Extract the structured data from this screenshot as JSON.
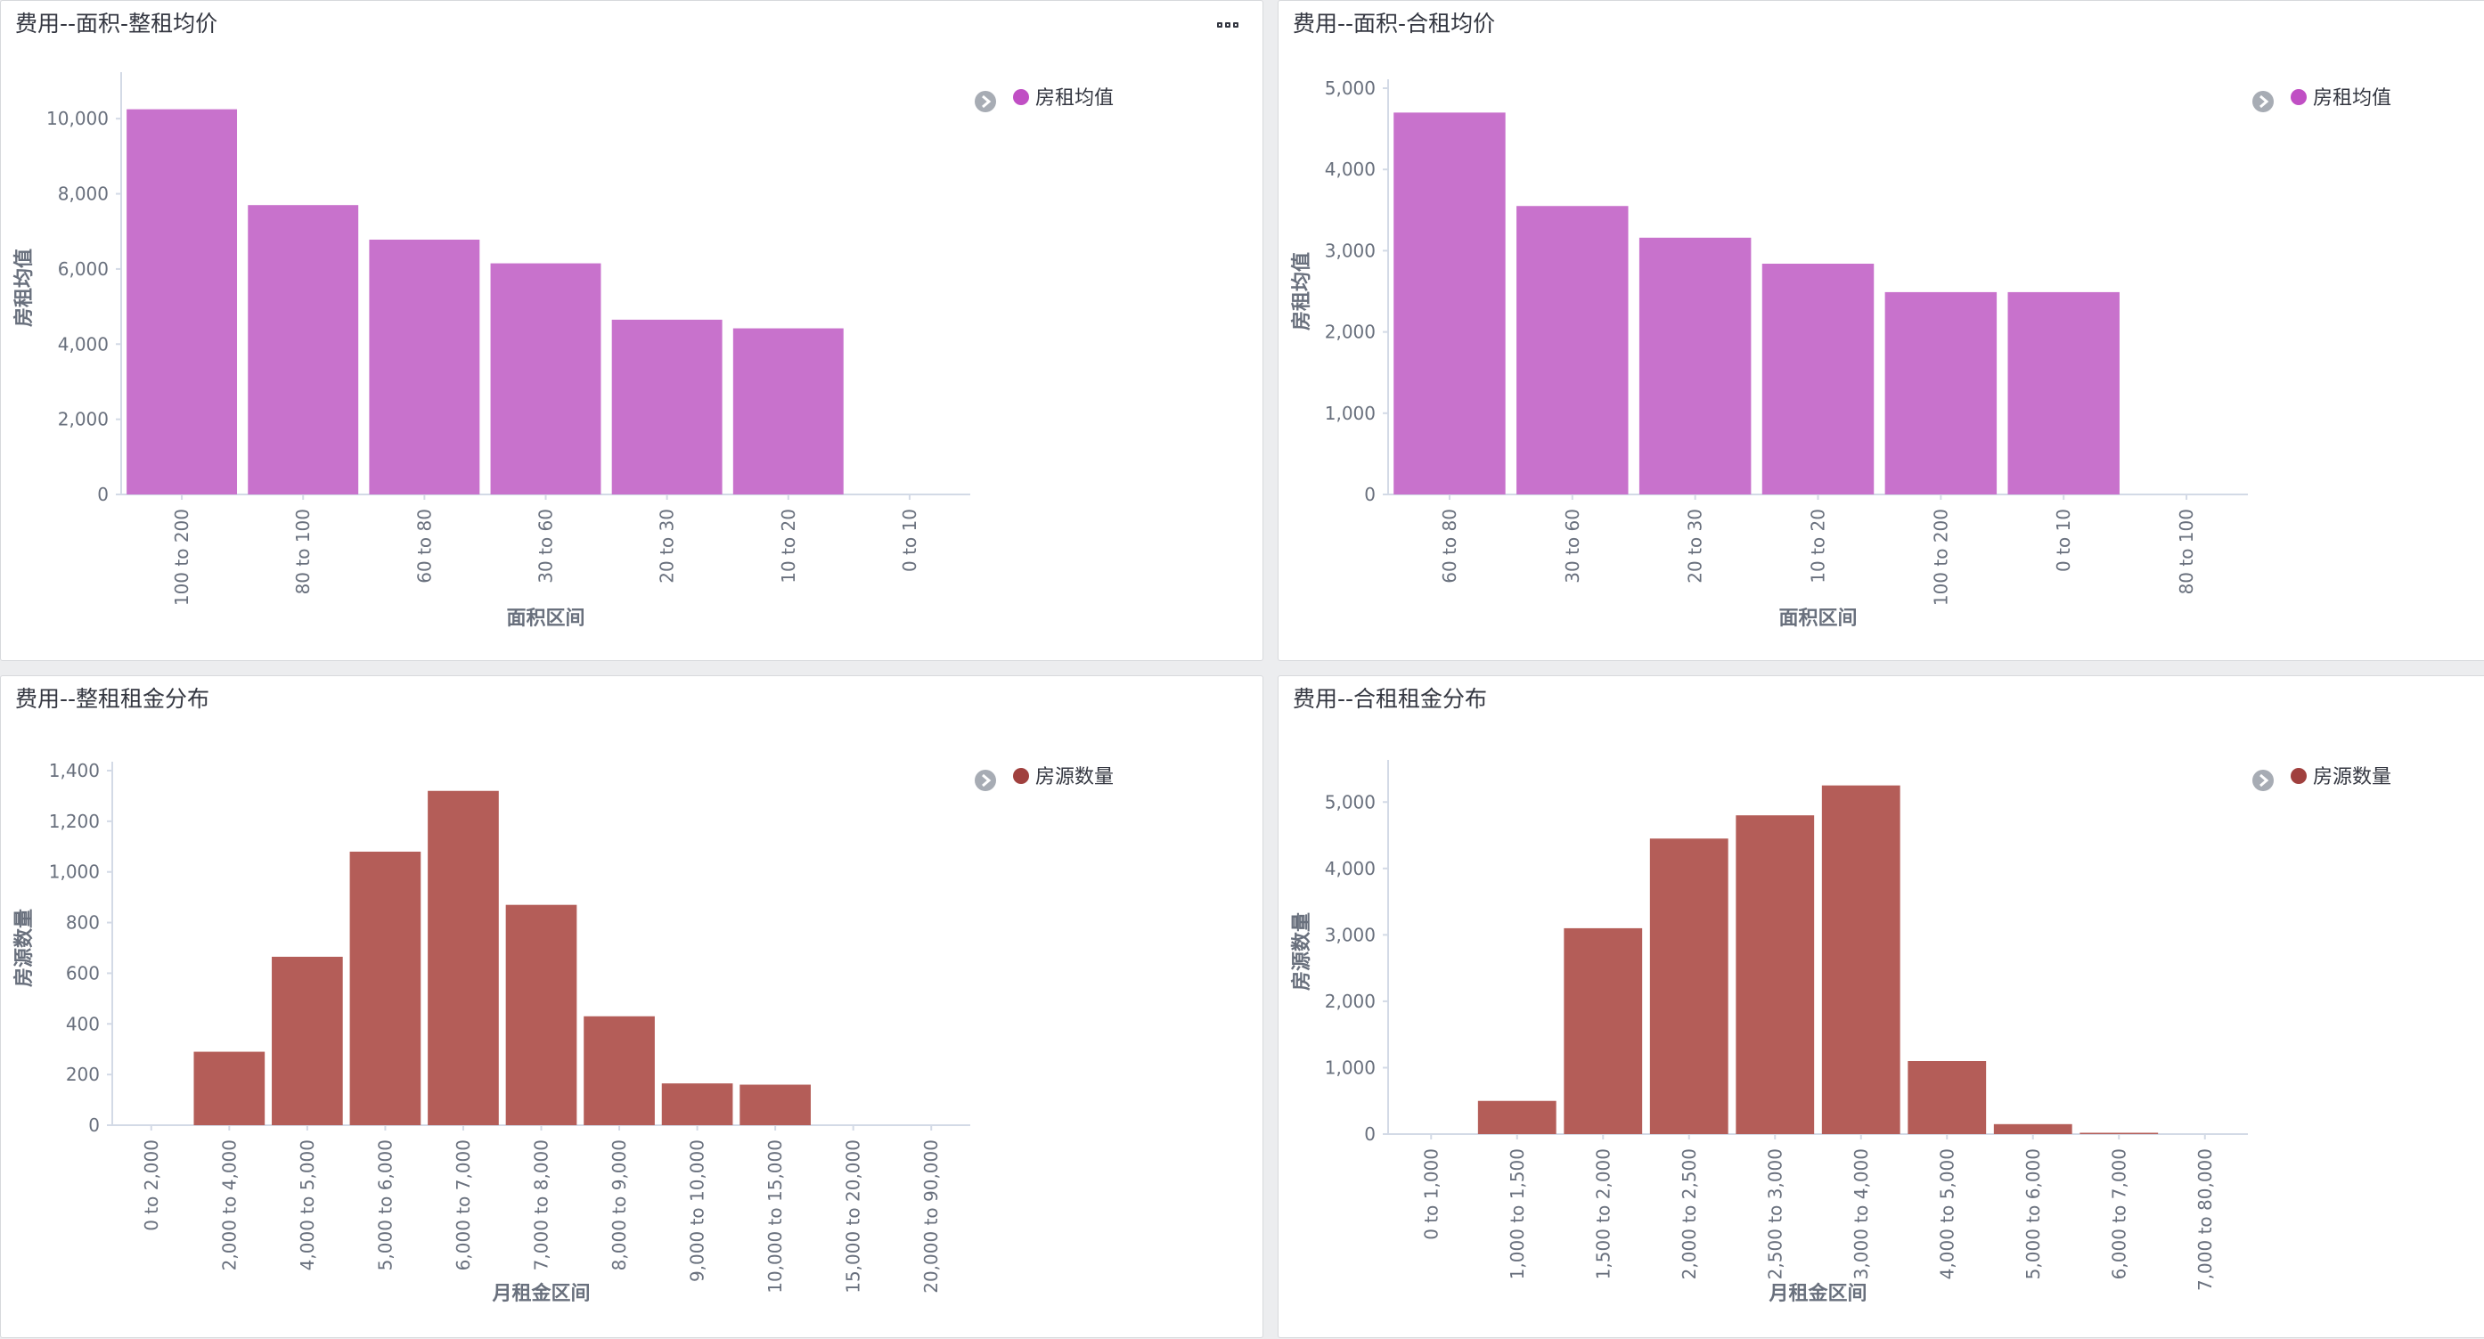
{
  "panels": [
    {
      "title": "费用--面积-整租均价",
      "has_menu": true,
      "chart_data": {
        "type": "bar",
        "categories": [
          "100 to 200",
          "80 to 100",
          "60 to 80",
          "30 to 60",
          "20 to 30",
          "10 to 20",
          "0 to 10"
        ],
        "series": [
          {
            "name": "房租均值",
            "values": [
              10250,
              7700,
              6780,
              6150,
              4650,
              4420,
              0
            ]
          }
        ],
        "xlabel": "面积区间",
        "ylabel": "房租均值",
        "yticks": [
          0,
          2000,
          4000,
          6000,
          8000,
          10000
        ],
        "ylim": [
          0,
          11000
        ],
        "legend": "top-right",
        "color": "#c872cc"
      }
    },
    {
      "title": "费用--面积-合租均价",
      "has_menu": false,
      "chart_data": {
        "type": "bar",
        "categories": [
          "60 to 80",
          "30 to 60",
          "20 to 30",
          "10 to 20",
          "100 to 200",
          "0 to 10",
          "80 to 100"
        ],
        "series": [
          {
            "name": "房租均值",
            "values": [
              4700,
              3550,
              3160,
              2840,
              2490,
              2490,
              0
            ]
          }
        ],
        "xlabel": "面积区间",
        "ylabel": "房租均值",
        "yticks": [
          0,
          1000,
          2000,
          3000,
          4000,
          5000
        ],
        "ylim": [
          0,
          5000
        ],
        "legend": "top-right",
        "color": "#c872cc"
      }
    },
    {
      "title": "费用--整租租金分布",
      "has_menu": false,
      "chart_data": {
        "type": "bar",
        "categories": [
          "0 to 2,000",
          "2,000 to 4,000",
          "4,000 to 5,000",
          "5,000 to 6,000",
          "6,000 to 7,000",
          "7,000 to 8,000",
          "8,000 to 9,000",
          "9,000 to 10,000",
          "10,000 to 15,000",
          "15,000 to 20,000",
          "20,000 to 90,000"
        ],
        "series": [
          {
            "name": "房源数量",
            "values": [
              0,
              290,
              665,
              1080,
              1320,
              870,
              430,
              165,
              160,
              0,
              0
            ]
          }
        ],
        "xlabel": "月租金区间",
        "ylabel": "房源数量",
        "yticks": [
          0,
          200,
          400,
          600,
          800,
          1000,
          1200,
          1400
        ],
        "ylim": [
          0,
          1400
        ],
        "legend": "top-right",
        "color": "#b45d58"
      }
    },
    {
      "title": "费用--合租租金分布",
      "has_menu": false,
      "chart_data": {
        "type": "bar",
        "categories": [
          "0 to 1,000",
          "1,000 to 1,500",
          "1,500 to 2,000",
          "2,000 to 2,500",
          "2,500 to 3,000",
          "3,000 to 4,000",
          "4,000 to 5,000",
          "5,000 to 6,000",
          "6,000 to 7,000",
          "7,000 to 80,000"
        ],
        "series": [
          {
            "name": "房源数量",
            "values": [
              0,
              500,
              3100,
              4450,
              4800,
              5250,
              1100,
              150,
              20,
              0
            ]
          }
        ],
        "xlabel": "月租金区间",
        "ylabel": "房源数量",
        "yticks": [
          0,
          1000,
          2000,
          3000,
          4000,
          5000
        ],
        "ylim": [
          0,
          5500
        ],
        "legend": "top-right",
        "color": "#b45d58"
      }
    }
  ]
}
